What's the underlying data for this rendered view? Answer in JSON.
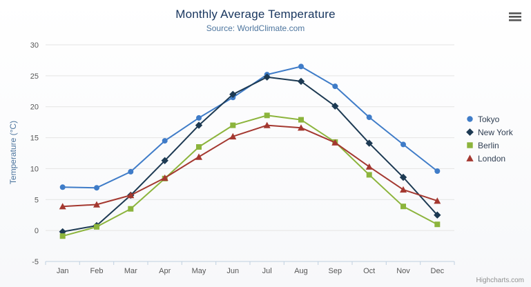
{
  "credits": "Highcharts.com",
  "colors": {
    "title": "#17355e",
    "subtitle": "#4d759e",
    "axis_label": "#565656",
    "y_axis_title": "#4d759e",
    "grid": "#e4e4e4",
    "axis_line": "#c0d0e0",
    "legend_text": "#2f3e52",
    "credits": "#909090",
    "menu_icon": "#555555"
  },
  "chart_data": {
    "type": "line",
    "title": "Monthly Average Temperature",
    "subtitle": "Source: WorldClimate.com",
    "xlabel": "",
    "ylabel": "Temperature (°C)",
    "categories": [
      "Jan",
      "Feb",
      "Mar",
      "Apr",
      "May",
      "Jun",
      "Jul",
      "Aug",
      "Sep",
      "Oct",
      "Nov",
      "Dec"
    ],
    "ylim": [
      -5,
      30
    ],
    "ytick_interval": 5,
    "grid": true,
    "legend_position": "right",
    "series": [
      {
        "name": "Tokyo",
        "color": "#3f7cc8",
        "marker": "circle",
        "values": [
          7.0,
          6.9,
          9.5,
          14.5,
          18.2,
          21.5,
          25.2,
          26.5,
          23.3,
          18.3,
          13.9,
          9.6
        ]
      },
      {
        "name": "New York",
        "color": "#1d3a53",
        "marker": "diamond",
        "values": [
          -0.2,
          0.8,
          5.7,
          11.3,
          17.0,
          22.0,
          24.8,
          24.1,
          20.1,
          14.1,
          8.6,
          2.5
        ]
      },
      {
        "name": "Berlin",
        "color": "#8cb43c",
        "marker": "square",
        "values": [
          -0.9,
          0.6,
          3.5,
          8.4,
          13.5,
          17.0,
          18.6,
          17.9,
          14.3,
          9.0,
          3.9,
          1.0
        ]
      },
      {
        "name": "London",
        "color": "#a43830",
        "marker": "triangle",
        "values": [
          3.9,
          4.2,
          5.7,
          8.5,
          11.9,
          15.2,
          17.0,
          16.6,
          14.2,
          10.3,
          6.6,
          4.8
        ]
      }
    ]
  }
}
